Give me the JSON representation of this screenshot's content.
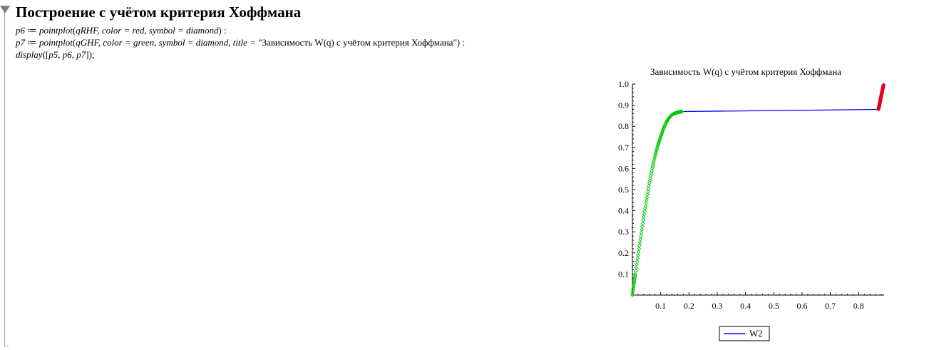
{
  "section": {
    "title": "Построение с учётом критерия Хоффмана"
  },
  "code": {
    "line1": {
      "lhs": "p6",
      "assign": " ≔ ",
      "func": "pointplot",
      "args": "qRHF, color = red, symbol = diamond",
      "end": " :"
    },
    "line2": {
      "lhs": "p7",
      "assign": " ≔ ",
      "func": "pointplot",
      "args": "qGHF, color = green, symbol = diamond, title = ",
      "title_string": "\"Зависимость W(q) с учётом критерия Хоффмана\"",
      "end": " :"
    },
    "line3": {
      "func": "display",
      "args": "p5, p6, p7",
      "end": ";"
    }
  },
  "chart_data": {
    "type": "line",
    "title": "Зависимость W(q) с учётом критерия Хоффмана",
    "xlabel": "",
    "ylabel": "",
    "xlim": [
      0,
      0.89
    ],
    "ylim": [
      0,
      1.0
    ],
    "x_ticks": [
      "0.1",
      "0.2",
      "0.3",
      "0.4",
      "0.5",
      "0.6",
      "0.7",
      "0.8"
    ],
    "y_ticks": [
      "0.1",
      "0.2",
      "0.3",
      "0.4",
      "0.5",
      "0.6",
      "0.7",
      "0.8",
      "0.9",
      "1.0"
    ],
    "grid": false,
    "legend_position": "bottom",
    "series": [
      {
        "name": "W2",
        "kind": "line",
        "color": "#0000ff",
        "x": [
          0.175,
          0.87
        ],
        "y": [
          0.87,
          0.88
        ]
      },
      {
        "name": "",
        "kind": "points",
        "symbol": "diamond",
        "color": "#00c800",
        "x": [
          0.0,
          0.005,
          0.01,
          0.02,
          0.03,
          0.04,
          0.05,
          0.06,
          0.07,
          0.08,
          0.09,
          0.1,
          0.11,
          0.12,
          0.13,
          0.14,
          0.15,
          0.16,
          0.17,
          0.175
        ],
        "y": [
          0.0,
          0.05,
          0.1,
          0.19,
          0.28,
          0.37,
          0.45,
          0.53,
          0.6,
          0.66,
          0.71,
          0.75,
          0.79,
          0.82,
          0.84,
          0.855,
          0.862,
          0.866,
          0.869,
          0.87
        ]
      },
      {
        "name": "",
        "kind": "points",
        "symbol": "diamond",
        "color": "#e00020",
        "x": [
          0.87,
          0.872,
          0.874,
          0.876,
          0.878,
          0.88,
          0.882,
          0.884,
          0.886,
          0.888
        ],
        "y": [
          0.88,
          0.893,
          0.906,
          0.919,
          0.932,
          0.945,
          0.958,
          0.971,
          0.984,
          0.997
        ]
      }
    ]
  }
}
